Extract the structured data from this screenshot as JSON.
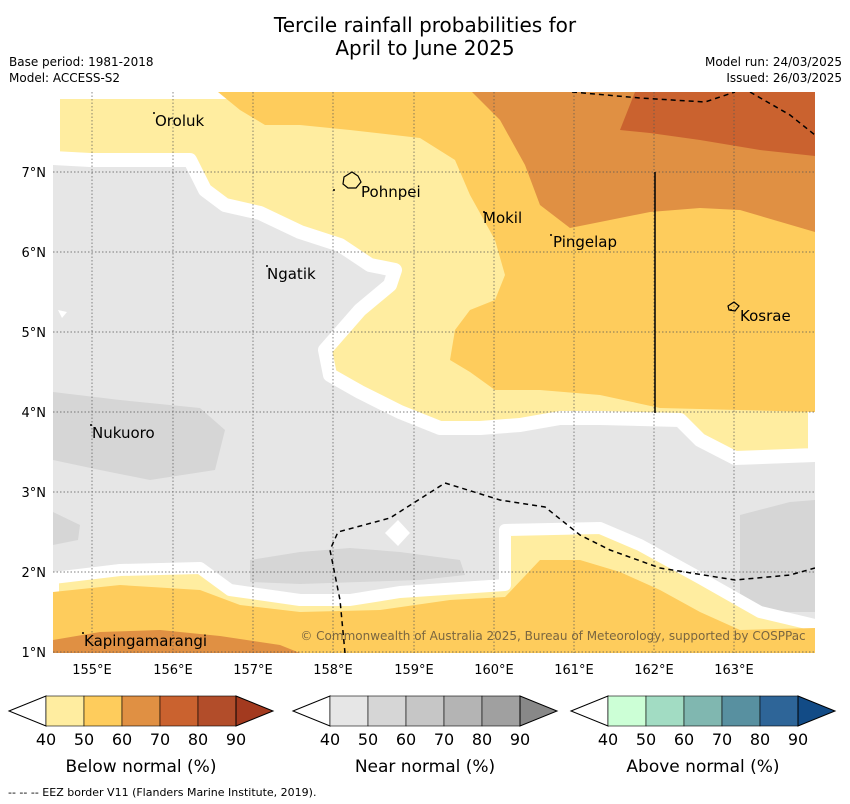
{
  "title_line1": "Tercile rainfall probabilities for",
  "title_line2": "April to June 2025",
  "base_period": "Base period: 1981-2018",
  "model": "Model: ACCESS-S2",
  "model_run": "Model run: 24/03/2025",
  "issued": "Issued: 26/03/2025",
  "copyright": "© Commonwealth of Australia 2025, Bureau of Meteorology, supported by COSPPac",
  "lon_ticks": [
    "155°E",
    "156°E",
    "157°E",
    "158°E",
    "159°E",
    "160°E",
    "161°E",
    "162°E",
    "163°E"
  ],
  "lat_ticks": [
    "7°N",
    "6°N",
    "5°N",
    "4°N",
    "3°N",
    "2°N",
    "1°N"
  ],
  "places": [
    {
      "name": "Oroluk"
    },
    {
      "name": "Pohnpei"
    },
    {
      "name": "Mokil"
    },
    {
      "name": "Pingelap"
    },
    {
      "name": "Ngatik"
    },
    {
      "name": "Kosrae"
    },
    {
      "name": "Nukuoro"
    },
    {
      "name": "Kapingamarangi"
    }
  ],
  "colorbars": [
    {
      "label": "Below normal (%)",
      "colors": [
        "#ffeda0",
        "#fecc5c",
        "#e09043",
        "#ca622f",
        "#b24d2a",
        "#a33a1f"
      ]
    },
    {
      "label": "Near normal (%)",
      "colors": [
        "#e6e6e6",
        "#d6d6d6",
        "#c6c6c6",
        "#b4b4b4",
        "#a0a0a0",
        "#888888"
      ]
    },
    {
      "label": "Above normal (%)",
      "colors": [
        "#ccffd6",
        "#a2dcc3",
        "#80b7b0",
        "#5890a0",
        "#2e6598",
        "#124b86"
      ]
    }
  ],
  "colorbar_ticks": [
    "40",
    "50",
    "60",
    "70",
    "80",
    "90"
  ],
  "eez_note": "--  --  -- EEZ border V11 (Flanders Marine Institute, 2019)."
}
